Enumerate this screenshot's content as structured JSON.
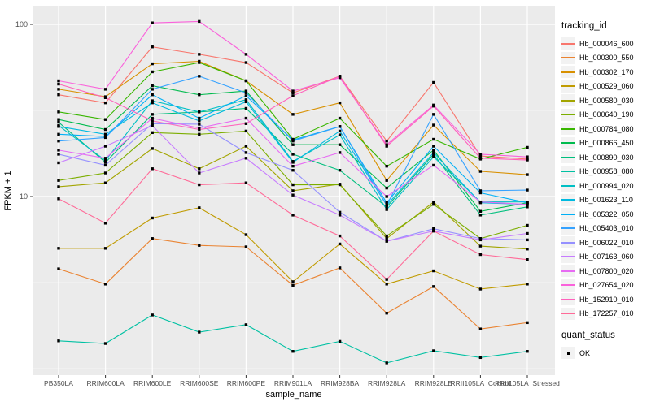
{
  "chart_data": {
    "type": "line",
    "title": "",
    "xlabel": "sample_name",
    "ylabel": "FPKM + 1",
    "x_categories": [
      "PB350LA",
      "RRIM600LA",
      "RRIM600LE",
      "RRIM600SE",
      "RRIM600PE",
      "RRIM901LA",
      "RRIM928BA",
      "RRIM928LA",
      "RRIM928LE",
      "RRII105LA_Control",
      "RRII105LA_Stressed"
    ],
    "y_scale": "log10",
    "y_ticks": [
      10,
      100
    ],
    "y_minor": [
      1,
      3.162,
      31.62
    ],
    "ylim": [
      1,
      127
    ],
    "legend_title": "tracking_id",
    "legend2_title": "quant_status",
    "legend2_items": [
      "OK"
    ],
    "grid": "on",
    "legend_position": "right",
    "point_shape": "black-square",
    "series": [
      {
        "name": "Hb_000046_600",
        "color": "#F8766D",
        "values": [
          39,
          35,
          74,
          67,
          60,
          40,
          50,
          21,
          46,
          17.2,
          16.5
        ]
      },
      {
        "name": "Hb_000300_550",
        "color": "#EA8331",
        "values": [
          3.8,
          3.1,
          5.7,
          5.2,
          5.1,
          3.05,
          3.85,
          2.1,
          3.0,
          1.7,
          1.85
        ]
      },
      {
        "name": "Hb_000302_170",
        "color": "#D89000",
        "values": [
          42,
          38,
          59,
          61,
          47,
          30,
          35,
          12.4,
          26,
          14,
          13.4
        ]
      },
      {
        "name": "Hb_000529_060",
        "color": "#C09B00",
        "values": [
          5.0,
          5.0,
          7.5,
          8.6,
          6.0,
          3.2,
          5.3,
          3.1,
          3.7,
          2.9,
          3.1
        ]
      },
      {
        "name": "Hb_000580_030",
        "color": "#A3A500",
        "values": [
          11.4,
          12,
          19,
          14.5,
          19.6,
          10.8,
          11.8,
          5.7,
          9.3,
          5.15,
          4.95
        ]
      },
      {
        "name": "Hb_000640_190",
        "color": "#7CAE00",
        "values": [
          12.4,
          13.7,
          23.5,
          23,
          24,
          11.7,
          11.7,
          5.9,
          9.0,
          5.7,
          6.8
        ]
      },
      {
        "name": "Hb_000784_080",
        "color": "#39B600",
        "values": [
          31,
          28,
          53,
          60,
          47,
          21.5,
          28.5,
          15,
          21.5,
          16.5,
          19.3
        ]
      },
      {
        "name": "Hb_000866_450",
        "color": "#00BB4E",
        "values": [
          28,
          24.5,
          44,
          39,
          41,
          20,
          20,
          11.2,
          18.6,
          8.2,
          9.2
        ]
      },
      {
        "name": "Hb_000890_030",
        "color": "#00BF7D",
        "values": [
          27,
          15.8,
          30,
          31,
          32.5,
          17.6,
          14.2,
          8.7,
          17.6,
          7.8,
          8.7
        ]
      },
      {
        "name": "Hb_000958_080",
        "color": "#00C1A3",
        "values": [
          1.45,
          1.4,
          2.05,
          1.63,
          1.8,
          1.26,
          1.44,
          1.08,
          1.27,
          1.16,
          1.26
        ]
      },
      {
        "name": "Hb_000994_020",
        "color": "#00BFC4",
        "values": [
          25.8,
          16.2,
          36,
          31,
          36.5,
          16,
          22.8,
          8.4,
          17,
          9.3,
          9.3
        ]
      },
      {
        "name": "Hb_001623_110",
        "color": "#00BAE0",
        "values": [
          25.5,
          23,
          35,
          27.5,
          35.5,
          15.8,
          24,
          8.9,
          18,
          9.2,
          9.0
        ]
      },
      {
        "name": "Hb_005322_050",
        "color": "#00B0F6",
        "values": [
          23,
          22.3,
          39,
          28.5,
          38.5,
          21.3,
          25.5,
          9.2,
          19.6,
          10.5,
          9.2
        ]
      },
      {
        "name": "Hb_005403_010",
        "color": "#35A2FF",
        "values": [
          21,
          22,
          42,
          50,
          40,
          21,
          25.5,
          8.9,
          30,
          10.8,
          10.9
        ]
      },
      {
        "name": "Hb_006022_010",
        "color": "#9590FF",
        "values": [
          17.6,
          15.2,
          26.5,
          26.3,
          18,
          14.2,
          8.1,
          5.5,
          6.5,
          5.7,
          5.6
        ]
      },
      {
        "name": "Hb_007163_060",
        "color": "#C77CFF",
        "values": [
          15.7,
          19.6,
          25.8,
          13.7,
          16.7,
          10.2,
          7.8,
          5.5,
          6.3,
          5.6,
          6.1
        ]
      },
      {
        "name": "Hb_007800_020",
        "color": "#E76BF3",
        "values": [
          18.6,
          16.7,
          28.5,
          25,
          28.5,
          15,
          18,
          10,
          15.2,
          9.3,
          9.0
        ]
      },
      {
        "name": "Hb_027654_020",
        "color": "#FA62DB",
        "values": [
          47,
          42,
          102,
          104,
          67,
          41,
          49,
          20,
          34,
          17.6,
          17
        ]
      },
      {
        "name": "Hb_152910_010",
        "color": "#FF62BC",
        "values": [
          45,
          37.5,
          27.5,
          24.5,
          26.5,
          38.5,
          50,
          19.6,
          33.5,
          16.7,
          16.3
        ]
      },
      {
        "name": "Hb_172257_010",
        "color": "#FF6A98",
        "values": [
          9.7,
          7.0,
          14.5,
          11.7,
          12.0,
          7.8,
          5.9,
          3.3,
          6.3,
          4.6,
          4.3
        ]
      }
    ]
  },
  "style": {
    "panel_bg": "#EBEBEB",
    "grid_color": "#FFFFFF",
    "tick_label_color": "#4D4D4D",
    "axis_title_color": "#000000",
    "point_color": "#000000",
    "legend_key_bg": "#F2F2F2"
  }
}
